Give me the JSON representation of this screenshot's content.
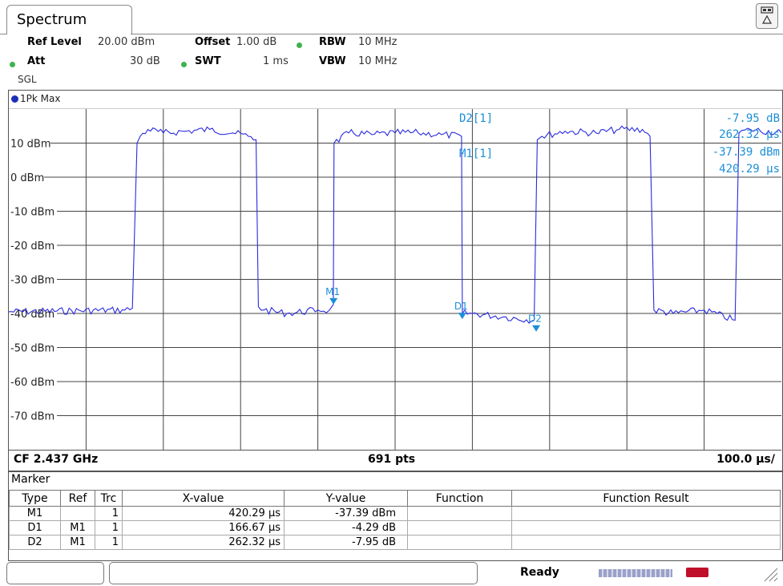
{
  "tab": {
    "title": "Spectrum"
  },
  "settings": {
    "ref_level_label": "Ref Level",
    "ref_level_value": "20.00 dBm",
    "offset_label": "Offset",
    "offset_value": "1.00 dB",
    "rbw_label": "RBW",
    "rbw_value": "10 MHz",
    "att_label": "Att",
    "att_value": "30 dB",
    "swt_label": "SWT",
    "swt_value": "1 ms",
    "vbw_label": "VBW",
    "vbw_value": "10 MHz",
    "mode": "SGL"
  },
  "trace": {
    "label": "1Pk Max",
    "color": "#2a2ae0"
  },
  "marker_readout": {
    "d2_label": "D2[1]",
    "d2_y": "-7.95 dB",
    "d2_x": "262.32 µs",
    "m1_label": "M1[1]",
    "m1_y": "-37.39 dBm",
    "m1_x": "420.29 µs"
  },
  "footer": {
    "cf": "CF 2.437 GHz",
    "pts": "691 pts",
    "span": "100.0 µs/"
  },
  "marker_table": {
    "title": "Marker",
    "headers": [
      "Type",
      "Ref",
      "Trc",
      "X-value",
      "Y-value",
      "Function",
      "Function Result"
    ],
    "rows": [
      [
        "M1",
        "",
        "1",
        "420.29 µs",
        "-37.39 dBm",
        "",
        ""
      ],
      [
        "D1",
        "M1",
        "1",
        "166.67 µs",
        "-4.29 dB",
        "",
        ""
      ],
      [
        "D2",
        "M1",
        "1",
        "262.32 µs",
        "-7.95 dB",
        "",
        ""
      ]
    ]
  },
  "status": {
    "text": "Ready"
  },
  "chart_data": {
    "type": "line",
    "xlabel": "",
    "ylabel": "",
    "ylim": [
      -80,
      20
    ],
    "xlim": [
      0,
      1000
    ],
    "x_unit": "µs",
    "y_unit": "dBm",
    "yticks": [
      "10 dBm",
      "0 dBm",
      "-10 dBm",
      "-20 dBm",
      "-30 dBm",
      "-40 dBm",
      "-50 dBm",
      "-60 dBm",
      "-70 dBm"
    ],
    "ytick_values": [
      10,
      0,
      -10,
      -20,
      -30,
      -40,
      -50,
      -60,
      -70
    ],
    "grid": true,
    "series": [
      {
        "x": [
          0,
          150,
          160,
          166,
          170,
          180,
          200,
          230,
          260,
          290,
          310,
          320,
          323,
          330,
          360,
          400,
          415,
          420,
          421,
          440,
          470,
          500,
          530,
          560,
          586,
          587,
          600,
          640,
          680,
          684,
          690,
          720,
          760,
          790,
          820,
          830,
          835,
          860,
          900,
          940,
          945,
          960,
          1000
        ],
        "y": [
          -39.5,
          -39,
          -38.5,
          10,
          12,
          14,
          13,
          13.5,
          14,
          13,
          12,
          11,
          -38,
          -39,
          -40,
          -39,
          -39,
          -37.4,
          10,
          13,
          12.5,
          13,
          13,
          12.5,
          12,
          -40,
          -40,
          -41,
          -42,
          11,
          12,
          13.5,
          13,
          14,
          14,
          12,
          -39,
          -40,
          -39,
          -42,
          13,
          14,
          13
        ],
        "color": "#2a2ae0"
      }
    ],
    "markers": [
      {
        "name": "M1",
        "x": 420.29,
        "y": -37.39
      },
      {
        "name": "D1",
        "x": 586.96,
        "y": -41.68
      },
      {
        "name": "D2",
        "x": 682.61,
        "y": -45.34
      }
    ]
  }
}
